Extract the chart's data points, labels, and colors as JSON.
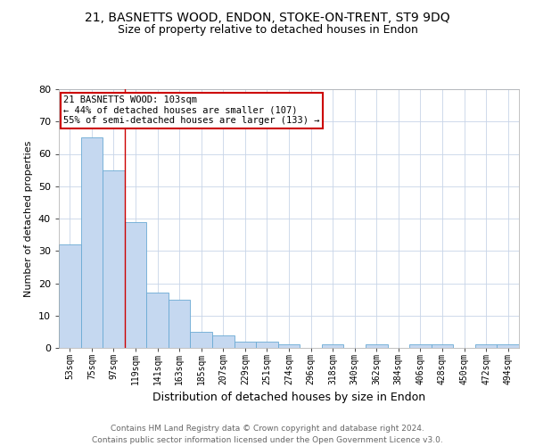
{
  "title": "21, BASNETTS WOOD, ENDON, STOKE-ON-TRENT, ST9 9DQ",
  "subtitle": "Size of property relative to detached houses in Endon",
  "xlabel": "Distribution of detached houses by size in Endon",
  "ylabel": "Number of detached properties",
  "footer_line1": "Contains HM Land Registry data © Crown copyright and database right 2024.",
  "footer_line2": "Contains public sector information licensed under the Open Government Licence v3.0.",
  "bin_labels": [
    "53sqm",
    "75sqm",
    "97sqm",
    "119sqm",
    "141sqm",
    "163sqm",
    "185sqm",
    "207sqm",
    "229sqm",
    "251sqm",
    "274sqm",
    "296sqm",
    "318sqm",
    "340sqm",
    "362sqm",
    "384sqm",
    "406sqm",
    "428sqm",
    "450sqm",
    "472sqm",
    "494sqm"
  ],
  "bar_values": [
    32,
    65,
    55,
    39,
    17,
    15,
    5,
    4,
    2,
    2,
    1,
    0,
    1,
    0,
    1,
    0,
    1,
    1,
    0,
    1,
    1
  ],
  "bar_color": "#c5d8f0",
  "bar_edge_color": "#6aaad4",
  "vline_x": 2.5,
  "vline_color": "#cc0000",
  "ylim": [
    0,
    80
  ],
  "yticks": [
    0,
    10,
    20,
    30,
    40,
    50,
    60,
    70,
    80
  ],
  "annotation_line1": "21 BASNETTS WOOD: 103sqm",
  "annotation_line2": "← 44% of detached houses are smaller (107)",
  "annotation_line3": "55% of semi-detached houses are larger (133) →",
  "annotation_box_color": "#ffffff",
  "annotation_box_edge_color": "#cc0000",
  "grid_color": "#c8d4e8",
  "background_color": "#ffffff",
  "title_fontsize": 10,
  "subtitle_fontsize": 9,
  "xlabel_fontsize": 9,
  "ylabel_fontsize": 8,
  "tick_fontsize": 7,
  "footer_fontsize": 6.5
}
